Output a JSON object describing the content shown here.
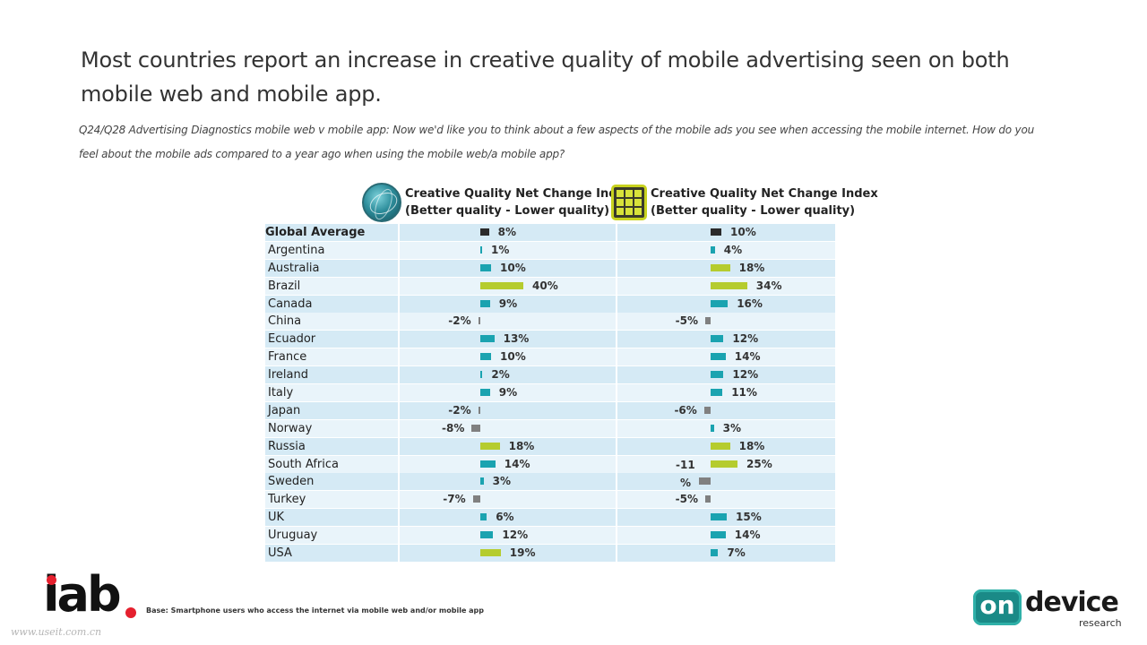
{
  "title": "Most countries report an increase in creative quality of mobile advertising seen on both mobile web and mobile app.",
  "question": "Q24/Q28 Advertising Diagnostics mobile web v mobile app: Now we'd like you to think about a few aspects of the mobile ads you see when accessing the mobile internet. How do you feel about the mobile ads compared to a year ago when using the mobile web/a mobile app?",
  "headers": {
    "web": {
      "line1": "Creative Quality Net Change Index",
      "line2": "(Better quality - Lower quality)",
      "icon": "globe-icon"
    },
    "app": {
      "line1": "Creative Quality Net Change Index",
      "line2": "(Better quality - Lower quality)",
      "icon": "apps-grid-icon"
    }
  },
  "colors": {
    "global": "#2b2b2b",
    "positive_high": "#b5cc2e",
    "positive": "#1aa3b0",
    "negative": "#808080"
  },
  "chart_data": {
    "type": "bar",
    "categories": [
      "Global Average",
      "Argentina",
      "Australia",
      "Brazil",
      "Canada",
      "China",
      "Ecuador",
      "France",
      "Ireland",
      "Italy",
      "Japan",
      "Norway",
      "Russia",
      "South Africa",
      "Sweden",
      "Turkey",
      "UK",
      "Uruguay",
      "USA"
    ],
    "series": [
      {
        "name": "",
        "values": [
          8,
          1,
          10,
          40,
          9,
          -2,
          13,
          10,
          2,
          9,
          -2,
          -8,
          18,
          14,
          3,
          -7,
          6,
          12,
          19
        ],
        "labels": [
          "8%",
          "1%",
          "10%",
          "40%",
          "9%",
          "-2%",
          "13%",
          "10%",
          "2%",
          "9%",
          "-2%",
          "-8%",
          "18%",
          "14%",
          "3%",
          "-7%",
          "6%",
          "12%",
          "19%"
        ],
        "styles": [
          "global",
          "positive",
          "positive",
          "positive_high",
          "positive",
          "negative",
          "positive",
          "positive",
          "positive",
          "positive",
          "negative",
          "negative",
          "positive_high",
          "positive",
          "positive",
          "negative",
          "positive",
          "positive",
          "positive_high"
        ]
      },
      {
        "name": "",
        "values": [
          10,
          4,
          18,
          34,
          16,
          -5,
          12,
          14,
          12,
          11,
          -6,
          3,
          18,
          25,
          -11,
          -5,
          15,
          14,
          7
        ],
        "labels": [
          "10%",
          "4%",
          "18%",
          "34%",
          "16%",
          "-5%",
          "12%",
          "14%",
          "12%",
          "11%",
          "-6%",
          "3%",
          "18%",
          "25%",
          "",
          "-5%",
          "15%",
          "14%",
          "7%"
        ],
        "styles": [
          "global",
          "positive",
          "positive_high",
          "positive_high",
          "positive",
          "negative",
          "positive",
          "positive",
          "positive",
          "positive",
          "negative",
          "positive",
          "positive_high",
          "positive_high",
          "negative",
          "negative",
          "positive",
          "positive",
          "positive"
        ]
      }
    ]
  },
  "sweden_app_label": {
    "line1": "-11",
    "line2": "%"
  },
  "footer": {
    "logo_left": "iab",
    "base_note": "Base: Smartphone users who access the internet via mobile web and/or mobile app",
    "watermark": "www.useit.com.cn",
    "logo_right_on": "on",
    "logo_right_device": "device",
    "logo_right_research": "research"
  }
}
